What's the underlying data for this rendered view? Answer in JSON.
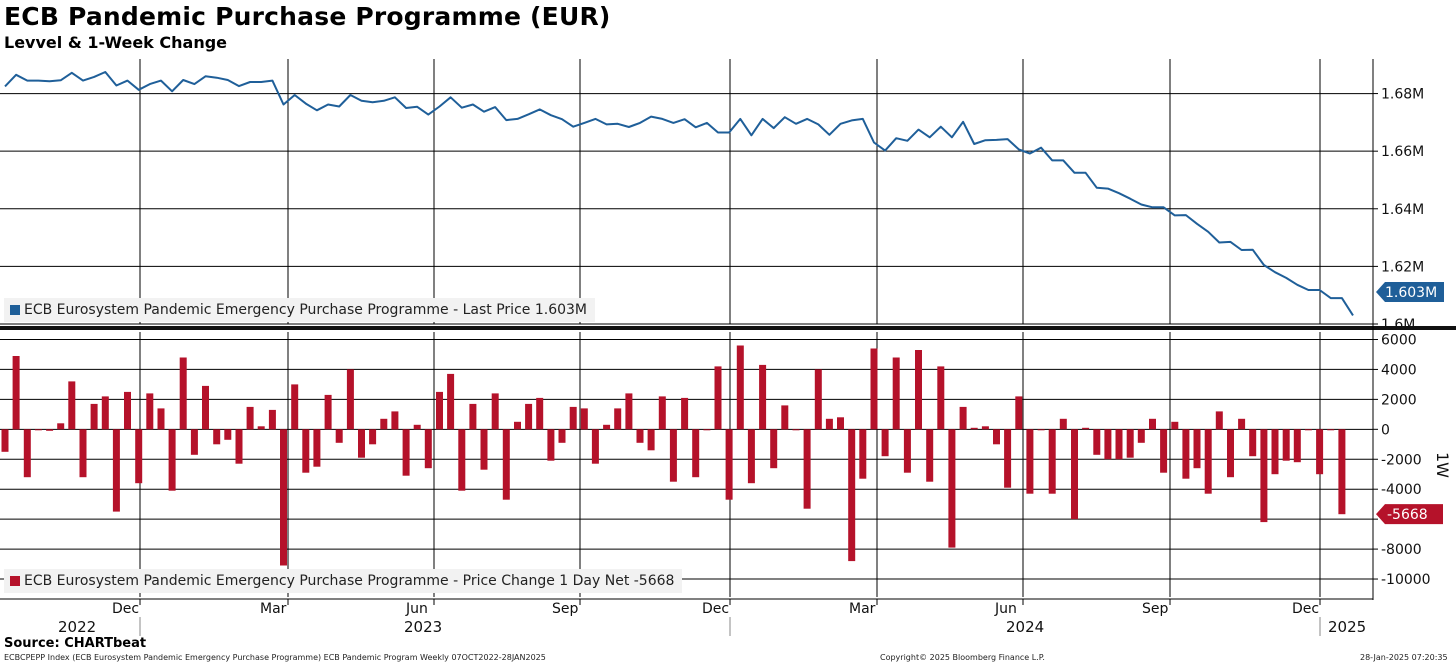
{
  "header": {
    "title": "ECB Pandemic Purchase Programme (EUR)",
    "subtitle": "Levvel & 1-Week Change"
  },
  "footer": {
    "source": "Source: CHARTbeat",
    "description": "ECBCPEPP Index (ECB Eurosystem Pandemic Emergency Purchase Programme) ECB Pandemic Program  Weekly 07OCT2022-28JAN2025",
    "copyright": "Copyright© 2025 Bloomberg Finance L.P.",
    "timestamp": "28-Jan-2025 07:20:35"
  },
  "colors": {
    "line": "#1f5f99",
    "bar": "#b5122a",
    "grid": "#000000"
  },
  "chart_data": [
    {
      "type": "line",
      "legend": "ECB Eurosystem Pandemic Emergency Purchase Programme - Last Price 1.603M",
      "last_value_label": "1.603M",
      "y_unit": "M",
      "ylim": [
        1.6,
        1.692
      ],
      "y_ticks": [
        1.6,
        1.62,
        1.64,
        1.66,
        1.68
      ],
      "y_tick_labels": [
        "1.6M",
        "1.62M",
        "1.64M",
        "1.66M",
        "1.68M"
      ],
      "values": [
        1.6825,
        1.6865,
        1.6845,
        1.6845,
        1.6843,
        1.6846,
        1.6872,
        1.6845,
        1.6858,
        1.6875,
        1.6828,
        1.6845,
        1.6813,
        1.6833,
        1.6845,
        1.6808,
        1.6847,
        1.6833,
        1.686,
        1.6855,
        1.6847,
        1.6826,
        1.684,
        1.684,
        1.6845,
        1.6762,
        1.6795,
        1.6765,
        1.6742,
        1.6762,
        1.6755,
        1.6795,
        1.6775,
        1.677,
        1.6775,
        1.6787,
        1.675,
        1.6754,
        1.6727,
        1.6755,
        1.6787,
        1.6751,
        1.6762,
        1.6737,
        1.6753,
        1.6708,
        1.6712,
        1.6728,
        1.6745,
        1.6725,
        1.6711,
        1.6685,
        1.6698,
        1.6712,
        1.6693,
        1.6695,
        1.6684,
        1.6698,
        1.672,
        1.6712,
        1.6698,
        1.6711,
        1.6683,
        1.6698,
        1.6665,
        1.6665,
        1.6712,
        1.6655,
        1.6712,
        1.668,
        1.6718,
        1.6695,
        1.6712,
        1.6693,
        1.6657,
        1.6695,
        1.6707,
        1.6712,
        1.663,
        1.6602,
        1.6645,
        1.6636,
        1.6675,
        1.6648,
        1.6685,
        1.6648,
        1.6702,
        1.6625,
        1.6638,
        1.6639,
        1.6642,
        1.6606,
        1.6592,
        1.6612,
        1.6568,
        1.6568,
        1.6525,
        1.6525,
        1.6473,
        1.647,
        1.6454,
        1.6435,
        1.6415,
        1.6405,
        1.6405,
        1.6377,
        1.6378,
        1.6348,
        1.632,
        1.6283,
        1.6285,
        1.6257,
        1.6258,
        1.6205,
        1.618,
        1.616,
        1.6136,
        1.6118,
        1.6118,
        1.609,
        1.609,
        1.603
      ]
    },
    {
      "type": "bar",
      "legend": "ECB Eurosystem Pandemic Emergency Purchase Programme - Price Change 1 Day Net -5668",
      "last_value_label": "-5668",
      "axis_title": "1W",
      "ylim": [
        -11200,
        6500
      ],
      "y_ticks": [
        -10000,
        -8000,
        -6000,
        -4000,
        -2000,
        0,
        2000,
        4000,
        6000
      ],
      "y_tick_labels": [
        "-10000",
        "-8000",
        "-6000",
        "-4000",
        "-2000",
        "0",
        "2000",
        "4000",
        "6000"
      ],
      "values": [
        -1500,
        4900,
        -3200,
        0,
        -100,
        400,
        3200,
        -3200,
        1700,
        2200,
        -5500,
        2500,
        -3600,
        2400,
        1400,
        -4100,
        4800,
        -1700,
        2900,
        -1000,
        -700,
        -2300,
        1500,
        200,
        1300,
        -9100,
        3000,
        -2900,
        -2500,
        2300,
        -900,
        4000,
        -1900,
        -1000,
        700,
        1200,
        -3100,
        300,
        -2600,
        2500,
        3700,
        -4100,
        1700,
        -2700,
        2400,
        -4700,
        500,
        1700,
        2100,
        -2100,
        -900,
        1500,
        1400,
        -2300,
        300,
        1400,
        2400,
        -900,
        -1400,
        2200,
        -3500,
        2100,
        -3200,
        0,
        4200,
        -4700,
        5600,
        -3600,
        4300,
        -2600,
        1600,
        0,
        -5300,
        4000,
        700,
        800,
        -8800,
        -3300,
        5400,
        -1800,
        4800,
        -2900,
        5300,
        -3500,
        4200,
        -7900,
        1500,
        100,
        200,
        -1000,
        -3900,
        2200,
        -4300,
        0,
        -4300,
        700,
        -6000,
        100,
        -1700,
        -2000,
        -2000,
        -1900,
        -900,
        700,
        -2900,
        500,
        -3300,
        -2600,
        -4300,
        1200,
        -3200,
        700,
        -1800,
        -6200,
        -3000,
        -2100,
        -2200,
        0,
        -3000,
        0,
        -5668
      ],
      "x_tick_labels": [
        "Dec",
        "Mar",
        "Jun",
        "Sep",
        "Dec",
        "Mar",
        "Jun",
        "Sep",
        "Dec"
      ],
      "year_labels": [
        "2022",
        "2023",
        "2024",
        "2025"
      ]
    }
  ]
}
